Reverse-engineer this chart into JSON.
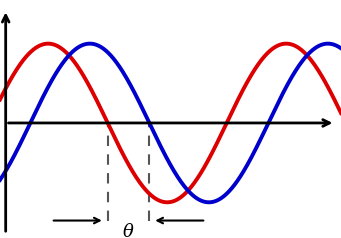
{
  "wave_color_red": "#dd0000",
  "wave_color_blue": "#0000cc",
  "background_color": "#ffffff",
  "axis_color": "#000000",
  "dashed_color": "#555555",
  "phase_shift": 1.1,
  "amplitude": 1.0,
  "x_start": -0.8,
  "x_end": 8.2,
  "y_lim": [
    -1.45,
    1.55
  ],
  "x_lim": [
    -0.8,
    8.2
  ],
  "theta_label": "θ",
  "linewidth": 2.8,
  "axis_lw": 2.0
}
